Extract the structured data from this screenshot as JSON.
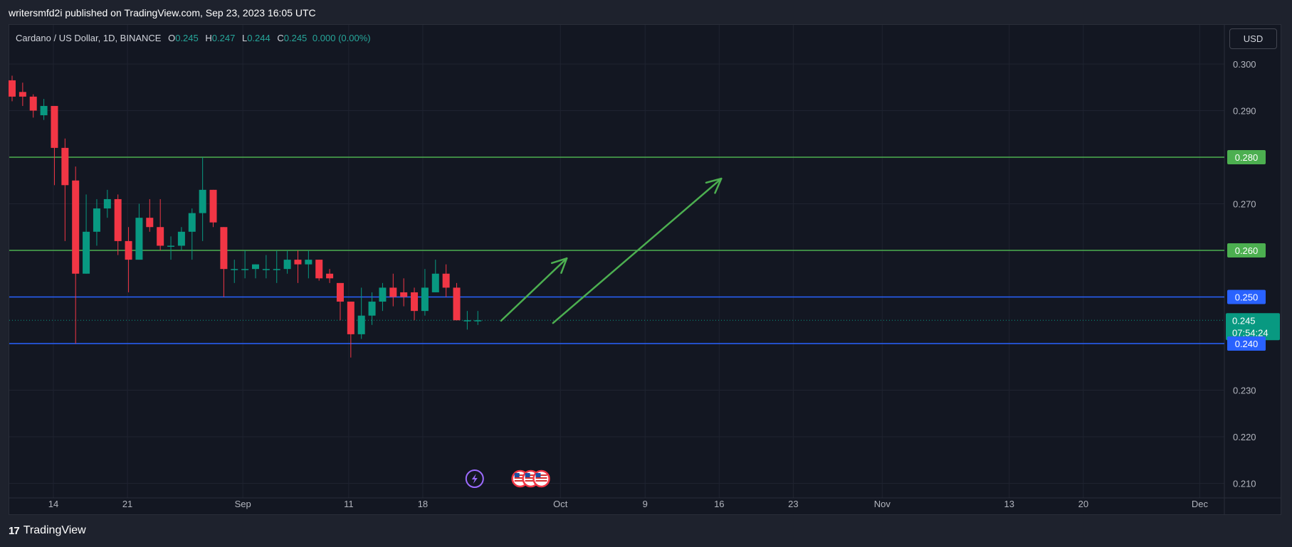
{
  "header": {
    "publish_line": "writersmfd2i published on TradingView.com, Sep 23, 2023 16:05 UTC"
  },
  "legend": {
    "symbol": "Cardano / US Dollar, 1D, BINANCE",
    "o_label": "O",
    "o_value": "0.245",
    "h_label": "H",
    "h_value": "0.247",
    "l_label": "L",
    "l_value": "0.244",
    "c_label": "C",
    "c_value": "0.245",
    "change": "0.000 (0.00%)"
  },
  "currency_button": "USD",
  "footer": {
    "brand": "TradingView"
  },
  "colors": {
    "background": "#131722",
    "up": "#089981",
    "down": "#f23645",
    "support_blue": "#2962ff",
    "resistance_green": "#4caf50",
    "arrow": "#4caf50",
    "grid": "#1f2330",
    "axis_text": "#b2b5be"
  },
  "chart_data": {
    "type": "candlestick",
    "title": "Cardano / US Dollar, 1D, BINANCE",
    "ylim": [
      0.207,
      0.305
    ],
    "y_ticks": [
      "0.300",
      "0.290",
      "0.280",
      "0.270",
      "0.260",
      "0.250",
      "0.240",
      "0.230",
      "0.220",
      "0.210"
    ],
    "x_ticks": [
      {
        "label": "14",
        "day": 14
      },
      {
        "label": "21",
        "day": 21
      },
      {
        "label": "Sep",
        "day": 31.9
      },
      {
        "label": "11",
        "day": 41.9
      },
      {
        "label": "18",
        "day": 48.9
      },
      {
        "label": "Oct",
        "day": 61.9
      },
      {
        "label": "9",
        "day": 69.9
      },
      {
        "label": "16",
        "day": 76.9
      },
      {
        "label": "23",
        "day": 83.9
      },
      {
        "label": "Nov",
        "day": 92.3
      },
      {
        "label": "13",
        "day": 104.3
      },
      {
        "label": "20",
        "day": 111.3
      },
      {
        "label": "Dec",
        "day": 122.3
      }
    ],
    "candles": [
      {
        "day": 10.1,
        "o": 0.2965,
        "h": 0.2975,
        "l": 0.292,
        "c": 0.293
      },
      {
        "day": 11.1,
        "o": 0.294,
        "h": 0.296,
        "l": 0.291,
        "c": 0.293
      },
      {
        "day": 12.1,
        "o": 0.293,
        "h": 0.2935,
        "l": 0.2885,
        "c": 0.29
      },
      {
        "day": 13.1,
        "o": 0.289,
        "h": 0.2925,
        "l": 0.288,
        "c": 0.291
      },
      {
        "day": 14.1,
        "o": 0.291,
        "h": 0.291,
        "l": 0.274,
        "c": 0.282
      },
      {
        "day": 15.1,
        "o": 0.282,
        "h": 0.284,
        "l": 0.262,
        "c": 0.274
      },
      {
        "day": 16.1,
        "o": 0.275,
        "h": 0.278,
        "l": 0.24,
        "c": 0.255
      },
      {
        "day": 17.1,
        "o": 0.255,
        "h": 0.272,
        "l": 0.255,
        "c": 0.264
      },
      {
        "day": 18.1,
        "o": 0.264,
        "h": 0.271,
        "l": 0.261,
        "c": 0.269
      },
      {
        "day": 19.1,
        "o": 0.269,
        "h": 0.273,
        "l": 0.267,
        "c": 0.271
      },
      {
        "day": 20.1,
        "o": 0.271,
        "h": 0.272,
        "l": 0.259,
        "c": 0.262
      },
      {
        "day": 21.1,
        "o": 0.262,
        "h": 0.265,
        "l": 0.251,
        "c": 0.258
      },
      {
        "day": 22.1,
        "o": 0.258,
        "h": 0.27,
        "l": 0.258,
        "c": 0.267
      },
      {
        "day": 23.1,
        "o": 0.267,
        "h": 0.271,
        "l": 0.264,
        "c": 0.265
      },
      {
        "day": 24.1,
        "o": 0.265,
        "h": 0.271,
        "l": 0.26,
        "c": 0.261
      },
      {
        "day": 25.1,
        "o": 0.261,
        "h": 0.263,
        "l": 0.258,
        "c": 0.261
      },
      {
        "day": 26.1,
        "o": 0.261,
        "h": 0.265,
        "l": 0.26,
        "c": 0.264
      },
      {
        "day": 27.1,
        "o": 0.264,
        "h": 0.269,
        "l": 0.258,
        "c": 0.268
      },
      {
        "day": 28.1,
        "o": 0.268,
        "h": 0.28,
        "l": 0.262,
        "c": 0.273
      },
      {
        "day": 29.1,
        "o": 0.273,
        "h": 0.273,
        "l": 0.265,
        "c": 0.266
      },
      {
        "day": 30.1,
        "o": 0.265,
        "h": 0.265,
        "l": 0.25,
        "c": 0.256
      },
      {
        "day": 31.1,
        "o": 0.256,
        "h": 0.258,
        "l": 0.253,
        "c": 0.256
      },
      {
        "day": 32.1,
        "o": 0.256,
        "h": 0.26,
        "l": 0.254,
        "c": 0.256
      },
      {
        "day": 33.1,
        "o": 0.256,
        "h": 0.257,
        "l": 0.254,
        "c": 0.257
      },
      {
        "day": 34.1,
        "o": 0.256,
        "h": 0.259,
        "l": 0.254,
        "c": 0.256
      },
      {
        "day": 35.1,
        "o": 0.256,
        "h": 0.26,
        "l": 0.253,
        "c": 0.256
      },
      {
        "day": 36.1,
        "o": 0.256,
        "h": 0.26,
        "l": 0.255,
        "c": 0.258
      },
      {
        "day": 37.1,
        "o": 0.258,
        "h": 0.26,
        "l": 0.253,
        "c": 0.257
      },
      {
        "day": 38.1,
        "o": 0.257,
        "h": 0.26,
        "l": 0.254,
        "c": 0.258
      },
      {
        "day": 39.1,
        "o": 0.258,
        "h": 0.258,
        "l": 0.2535,
        "c": 0.254
      },
      {
        "day": 40.1,
        "o": 0.255,
        "h": 0.256,
        "l": 0.253,
        "c": 0.254
      },
      {
        "day": 41.1,
        "o": 0.253,
        "h": 0.253,
        "l": 0.245,
        "c": 0.249
      },
      {
        "day": 42.1,
        "o": 0.249,
        "h": 0.249,
        "l": 0.237,
        "c": 0.242
      },
      {
        "day": 43.1,
        "o": 0.242,
        "h": 0.252,
        "l": 0.241,
        "c": 0.246
      },
      {
        "day": 44.1,
        "o": 0.246,
        "h": 0.251,
        "l": 0.244,
        "c": 0.249
      },
      {
        "day": 45.1,
        "o": 0.249,
        "h": 0.253,
        "l": 0.247,
        "c": 0.252
      },
      {
        "day": 46.1,
        "o": 0.252,
        "h": 0.255,
        "l": 0.248,
        "c": 0.25
      },
      {
        "day": 47.1,
        "o": 0.251,
        "h": 0.254,
        "l": 0.248,
        "c": 0.25
      },
      {
        "day": 48.1,
        "o": 0.251,
        "h": 0.252,
        "l": 0.245,
        "c": 0.247
      },
      {
        "day": 49.1,
        "o": 0.247,
        "h": 0.256,
        "l": 0.246,
        "c": 0.252
      },
      {
        "day": 50.1,
        "o": 0.251,
        "h": 0.258,
        "l": 0.251,
        "c": 0.255
      },
      {
        "day": 51.1,
        "o": 0.255,
        "h": 0.257,
        "l": 0.25,
        "c": 0.252
      },
      {
        "day": 52.1,
        "o": 0.252,
        "h": 0.253,
        "l": 0.245,
        "c": 0.245
      },
      {
        "day": 53.1,
        "o": 0.245,
        "h": 0.247,
        "l": 0.243,
        "c": 0.245
      },
      {
        "day": 54.1,
        "o": 0.245,
        "h": 0.247,
        "l": 0.244,
        "c": 0.245
      }
    ],
    "levels": [
      {
        "value": 0.28,
        "label": "0.280",
        "color": "#4caf50"
      },
      {
        "value": 0.26,
        "label": "0.260",
        "color": "#4caf50"
      },
      {
        "value": 0.25,
        "label": "0.250",
        "color": "#2962ff"
      },
      {
        "value": 0.24,
        "label": "0.240",
        "color": "#2962ff"
      }
    ],
    "last_price": {
      "value": 0.245,
      "label": "0.245",
      "countdown": "07:54:24",
      "color": "#089981"
    },
    "arrows": [
      {
        "from_day": 56.3,
        "from_price": 0.2449,
        "to_day": 62.5,
        "to_price": 0.2583
      },
      {
        "from_day": 61.2,
        "from_price": 0.2444,
        "to_day": 77.1,
        "to_price": 0.2754
      }
    ],
    "events": [
      {
        "type": "lightning",
        "day": 53.8
      },
      {
        "type": "us-flag",
        "day": 58.1
      },
      {
        "type": "us-flag",
        "day": 59.1
      },
      {
        "type": "us-flag",
        "day": 60.1
      }
    ]
  }
}
